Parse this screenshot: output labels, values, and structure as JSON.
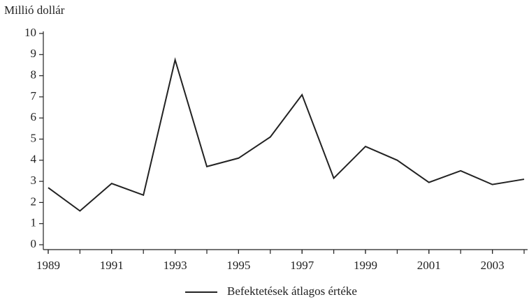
{
  "chart_data": {
    "type": "line",
    "y_label": "Millió dollár",
    "x": [
      1989,
      1990,
      1991,
      1992,
      1993,
      1994,
      1995,
      1996,
      1997,
      1998,
      1999,
      2000,
      2001,
      2002,
      2003,
      2004
    ],
    "series": [
      {
        "name": "Befektetések átlagos értéke",
        "color": "#222222",
        "values": [
          2.7,
          1.6,
          2.9,
          2.35,
          8.75,
          3.7,
          4.1,
          5.1,
          7.1,
          3.15,
          4.65,
          4.0,
          2.95,
          3.5,
          2.85,
          3.1
        ]
      }
    ],
    "xlim": [
      1989,
      2004
    ],
    "xticks": [
      1989,
      1991,
      1993,
      1995,
      1997,
      1999,
      2001,
      2003
    ],
    "ylim": [
      0,
      10
    ],
    "yticks": [
      0,
      1,
      2,
      3,
      4,
      5,
      6,
      7,
      8,
      9,
      10
    ],
    "legend": "bottom"
  }
}
